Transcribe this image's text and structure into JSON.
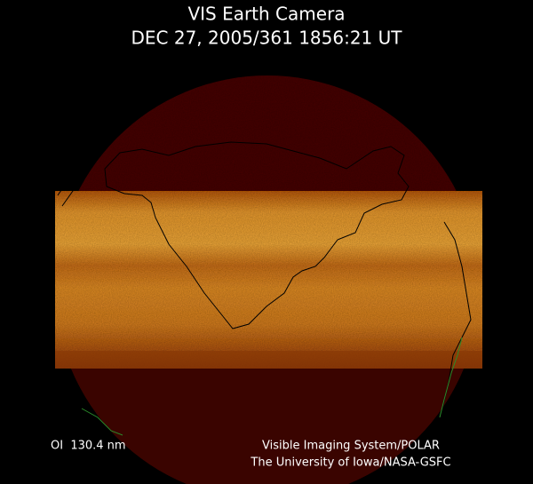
{
  "header": {
    "title": "VIS Earth Camera",
    "timestamp": "DEC 27, 2005/361 1856:21 UT"
  },
  "footer": {
    "wavelength": "OI  130.4 nm",
    "instrument": "Visible Imaging System/POLAR",
    "institution": "The University of Iowa/NASA-GSFC"
  }
}
